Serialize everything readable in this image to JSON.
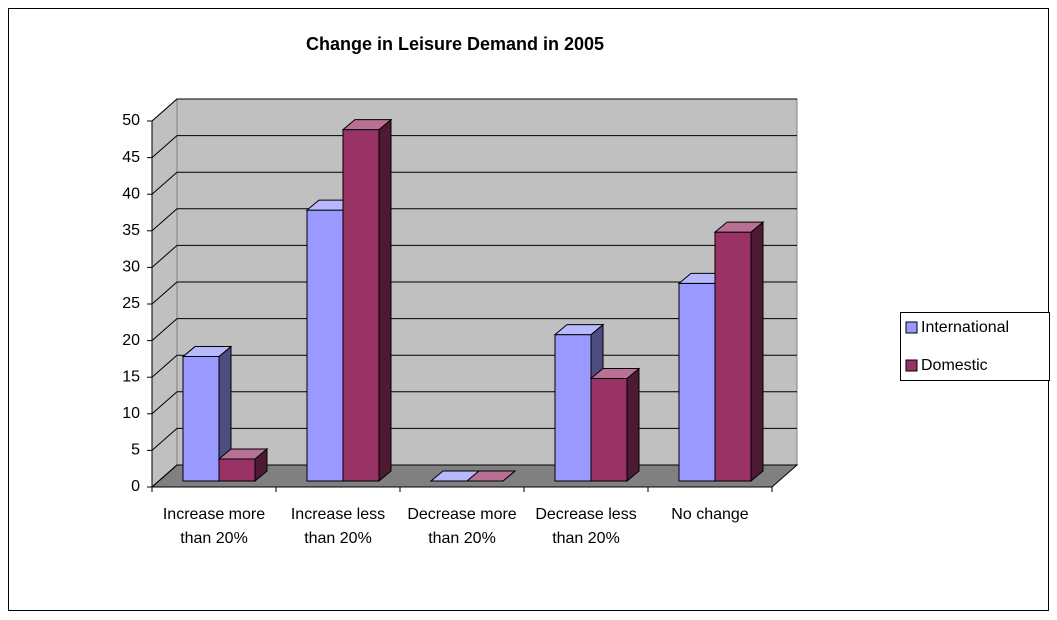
{
  "chart_data": {
    "type": "bar3d",
    "title": "Change in Leisure Demand in 2005",
    "categories": [
      "Increase more than 20%",
      "Increase less than 20%",
      "Decrease more than 20%",
      "Decrease less than 20%",
      "No change"
    ],
    "series": [
      {
        "name": "International",
        "color": "#9999ff",
        "values": [
          17,
          37,
          0,
          20,
          27
        ]
      },
      {
        "name": "Domestic",
        "color": "#993366",
        "values": [
          3,
          48,
          0,
          14,
          34
        ]
      }
    ],
    "ylim": [
      0,
      50
    ],
    "yticks": [
      0,
      5,
      10,
      15,
      20,
      25,
      30,
      35,
      40,
      45,
      50
    ],
    "grid": true,
    "legend": "right"
  }
}
